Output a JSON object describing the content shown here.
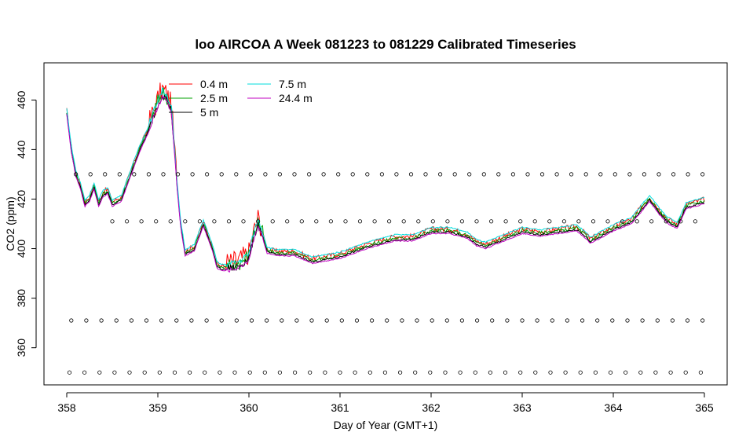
{
  "chart_data": {
    "type": "line",
    "title": "loo AIRCOA A  Week 081223 to 081229  Calibrated Timeseries",
    "xlabel": "Day of Year (GMT+1)",
    "ylabel": "CO2 (ppm)",
    "xlim": [
      357.75,
      365.25
    ],
    "ylim": [
      345,
      475
    ],
    "x_ticks": [
      358,
      359,
      360,
      361,
      362,
      363,
      364,
      365
    ],
    "y_ticks": [
      360,
      380,
      400,
      420,
      440,
      460
    ],
    "grid": false,
    "legend_position": "top-left",
    "base_points": {
      "x": [
        358.0,
        358.05,
        358.1,
        358.15,
        358.2,
        358.25,
        358.3,
        358.35,
        358.4,
        358.45,
        358.5,
        358.6,
        358.7,
        358.8,
        358.9,
        359.0,
        359.05,
        359.1,
        359.15,
        359.2,
        359.25,
        359.3,
        359.4,
        359.5,
        359.6,
        359.65,
        359.7,
        359.8,
        359.9,
        360.0,
        360.05,
        360.1,
        360.15,
        360.2,
        360.3,
        360.5,
        360.7,
        361.0,
        361.3,
        361.6,
        361.8,
        362.0,
        362.2,
        362.4,
        362.5,
        362.6,
        362.8,
        363.0,
        363.2,
        363.4,
        363.6,
        363.7,
        363.75,
        363.9,
        364.0,
        364.2,
        364.4,
        364.5,
        364.6,
        364.7,
        364.8,
        365.0
      ],
      "y": [
        455,
        440,
        430,
        425,
        418,
        420,
        425,
        418,
        422,
        423,
        418,
        420,
        430,
        440,
        448,
        458,
        462,
        460,
        455,
        430,
        410,
        398,
        400,
        410,
        400,
        393,
        392,
        392,
        393,
        396,
        404,
        410,
        405,
        399,
        398,
        398,
        395,
        397,
        401,
        404,
        404,
        407,
        407,
        405,
        402,
        401,
        404,
        407,
        406,
        407,
        408,
        405,
        403,
        406,
        408,
        411,
        420,
        415,
        411,
        409,
        417,
        419
      ]
    },
    "series": [
      {
        "name": "0.4 m",
        "color": "#ff0000",
        "offset": 0.5,
        "spikiness": 6
      },
      {
        "name": "2.5 m",
        "color": "#00a000",
        "offset": 0,
        "spikiness": 4
      },
      {
        "name": "5 m",
        "color": "#000000",
        "offset": -0.5,
        "spikiness": 2
      },
      {
        "name": "7.5 m",
        "color": "#00dddd",
        "offset": 1.5,
        "spikiness": 1.5
      },
      {
        "name": "24.4 m",
        "color": "#c000c0",
        "offset": -1.0,
        "spikiness": 1.2
      }
    ],
    "flag_rows": [
      {
        "y": 430,
        "x_start": 358.1,
        "x_end": 365.0,
        "step": 0.16
      },
      {
        "y": 411,
        "x_start": 358.5,
        "x_end": 364.9,
        "step": 0.16
      },
      {
        "y": 371,
        "x_start": 358.05,
        "x_end": 365.0,
        "step": 0.165
      },
      {
        "y": 350,
        "x_start": 358.03,
        "x_end": 365.0,
        "step": 0.165
      }
    ]
  }
}
